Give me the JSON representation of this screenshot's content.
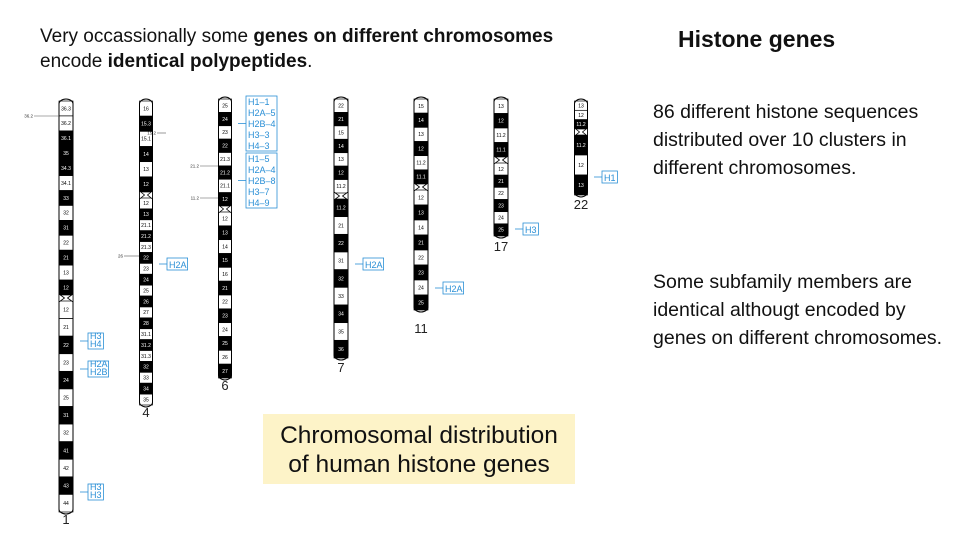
{
  "intro": {
    "line1_prefix": "Very occassionally some ",
    "line1_bold": "genes on different chromosomes",
    "line2_prefix": " encode ",
    "line2_bold": "identical polypeptides",
    "line2_suffix": "."
  },
  "title": "Histone genes",
  "notes": [
    "86 different histone sequences distributed over 10 clusters in different chromosomes.",
    "Some subfamily members are identical althougt encoded by genes on different chromosomes."
  ],
  "caption": {
    "line1": "Chromosomal distribution",
    "line2": "of human histone genes"
  },
  "colors": {
    "gene_label": "#2a8fd6",
    "caption_bg": "#fdf3c8",
    "band_dark": "#000000",
    "band_light": "#ffffff"
  },
  "chromosomes": [
    {
      "number": "1",
      "p_arm": [
        "36.3",
        "36.2",
        "36.1",
        "35",
        "34.3",
        "34.1",
        "33",
        "32",
        "31",
        "22",
        "21",
        "13",
        "12"
      ],
      "q_arm": [
        "12",
        "21",
        "22",
        "23",
        "24",
        "25",
        "31",
        "32",
        "41",
        "42",
        "43",
        "44"
      ],
      "side_labels": [
        "36.2"
      ],
      "gene_groups": [
        [
          "H3",
          "H4"
        ],
        [
          "H2A",
          "H2B"
        ],
        [
          "H3",
          "H3"
        ]
      ]
    },
    {
      "number": "4",
      "p_arm": [
        "16",
        "15.3",
        "15.1",
        "14",
        "13",
        "12"
      ],
      "q_arm": [
        "12",
        "13",
        "21.1",
        "21.2",
        "21.3",
        "22",
        "23",
        "24",
        "25",
        "26",
        "27",
        "28",
        "31.1",
        "31.2",
        "31.3",
        "32",
        "33",
        "34",
        "35"
      ],
      "side_labels": [
        "15.2",
        "26"
      ],
      "gene_groups": [
        [
          "H2A"
        ]
      ]
    },
    {
      "number": "6",
      "p_arm": [
        "25",
        "24",
        "23",
        "22",
        "21.3",
        "21.2",
        "21.1",
        "12"
      ],
      "q_arm": [
        "12",
        "13",
        "14",
        "15",
        "16",
        "21",
        "22",
        "23",
        "24",
        "25",
        "26",
        "27"
      ],
      "side_labels": [
        "21.2",
        "11.2"
      ],
      "gene_groups": [
        [
          "H1–1",
          "H2A–5",
          "H2B–4",
          "H3–3",
          "H4–3"
        ],
        [
          "H1–5",
          "H2A–4",
          "H2B–8",
          "H3–7",
          "H4–9"
        ]
      ]
    },
    {
      "number": "7",
      "p_arm": [
        "22",
        "21",
        "15",
        "14",
        "13",
        "12",
        "11.2"
      ],
      "q_arm": [
        "11.2",
        "21",
        "22",
        "31",
        "32",
        "33",
        "34",
        "35",
        "36"
      ],
      "side_labels": [],
      "gene_groups": [
        [
          "H2A"
        ]
      ]
    },
    {
      "number": "11",
      "p_arm": [
        "15",
        "14",
        "13",
        "12",
        "11.2",
        "11.1"
      ],
      "q_arm": [
        "12",
        "13",
        "14",
        "21",
        "22",
        "23",
        "24",
        "25"
      ],
      "side_labels": [],
      "gene_groups": [
        [
          "H2A"
        ]
      ]
    },
    {
      "number": "17",
      "p_arm": [
        "13",
        "12",
        "11.2",
        "11.1"
      ],
      "q_arm": [
        "12",
        "21",
        "22",
        "23",
        "24",
        "25"
      ],
      "side_labels": [],
      "gene_groups": [
        [
          "H3"
        ]
      ]
    },
    {
      "number": "22",
      "p_arm": [
        "13",
        "12",
        "11.2"
      ],
      "q_arm": [
        "11.2",
        "12",
        "13"
      ],
      "side_labels": [],
      "gene_groups": [
        [
          "H1"
        ]
      ]
    }
  ]
}
